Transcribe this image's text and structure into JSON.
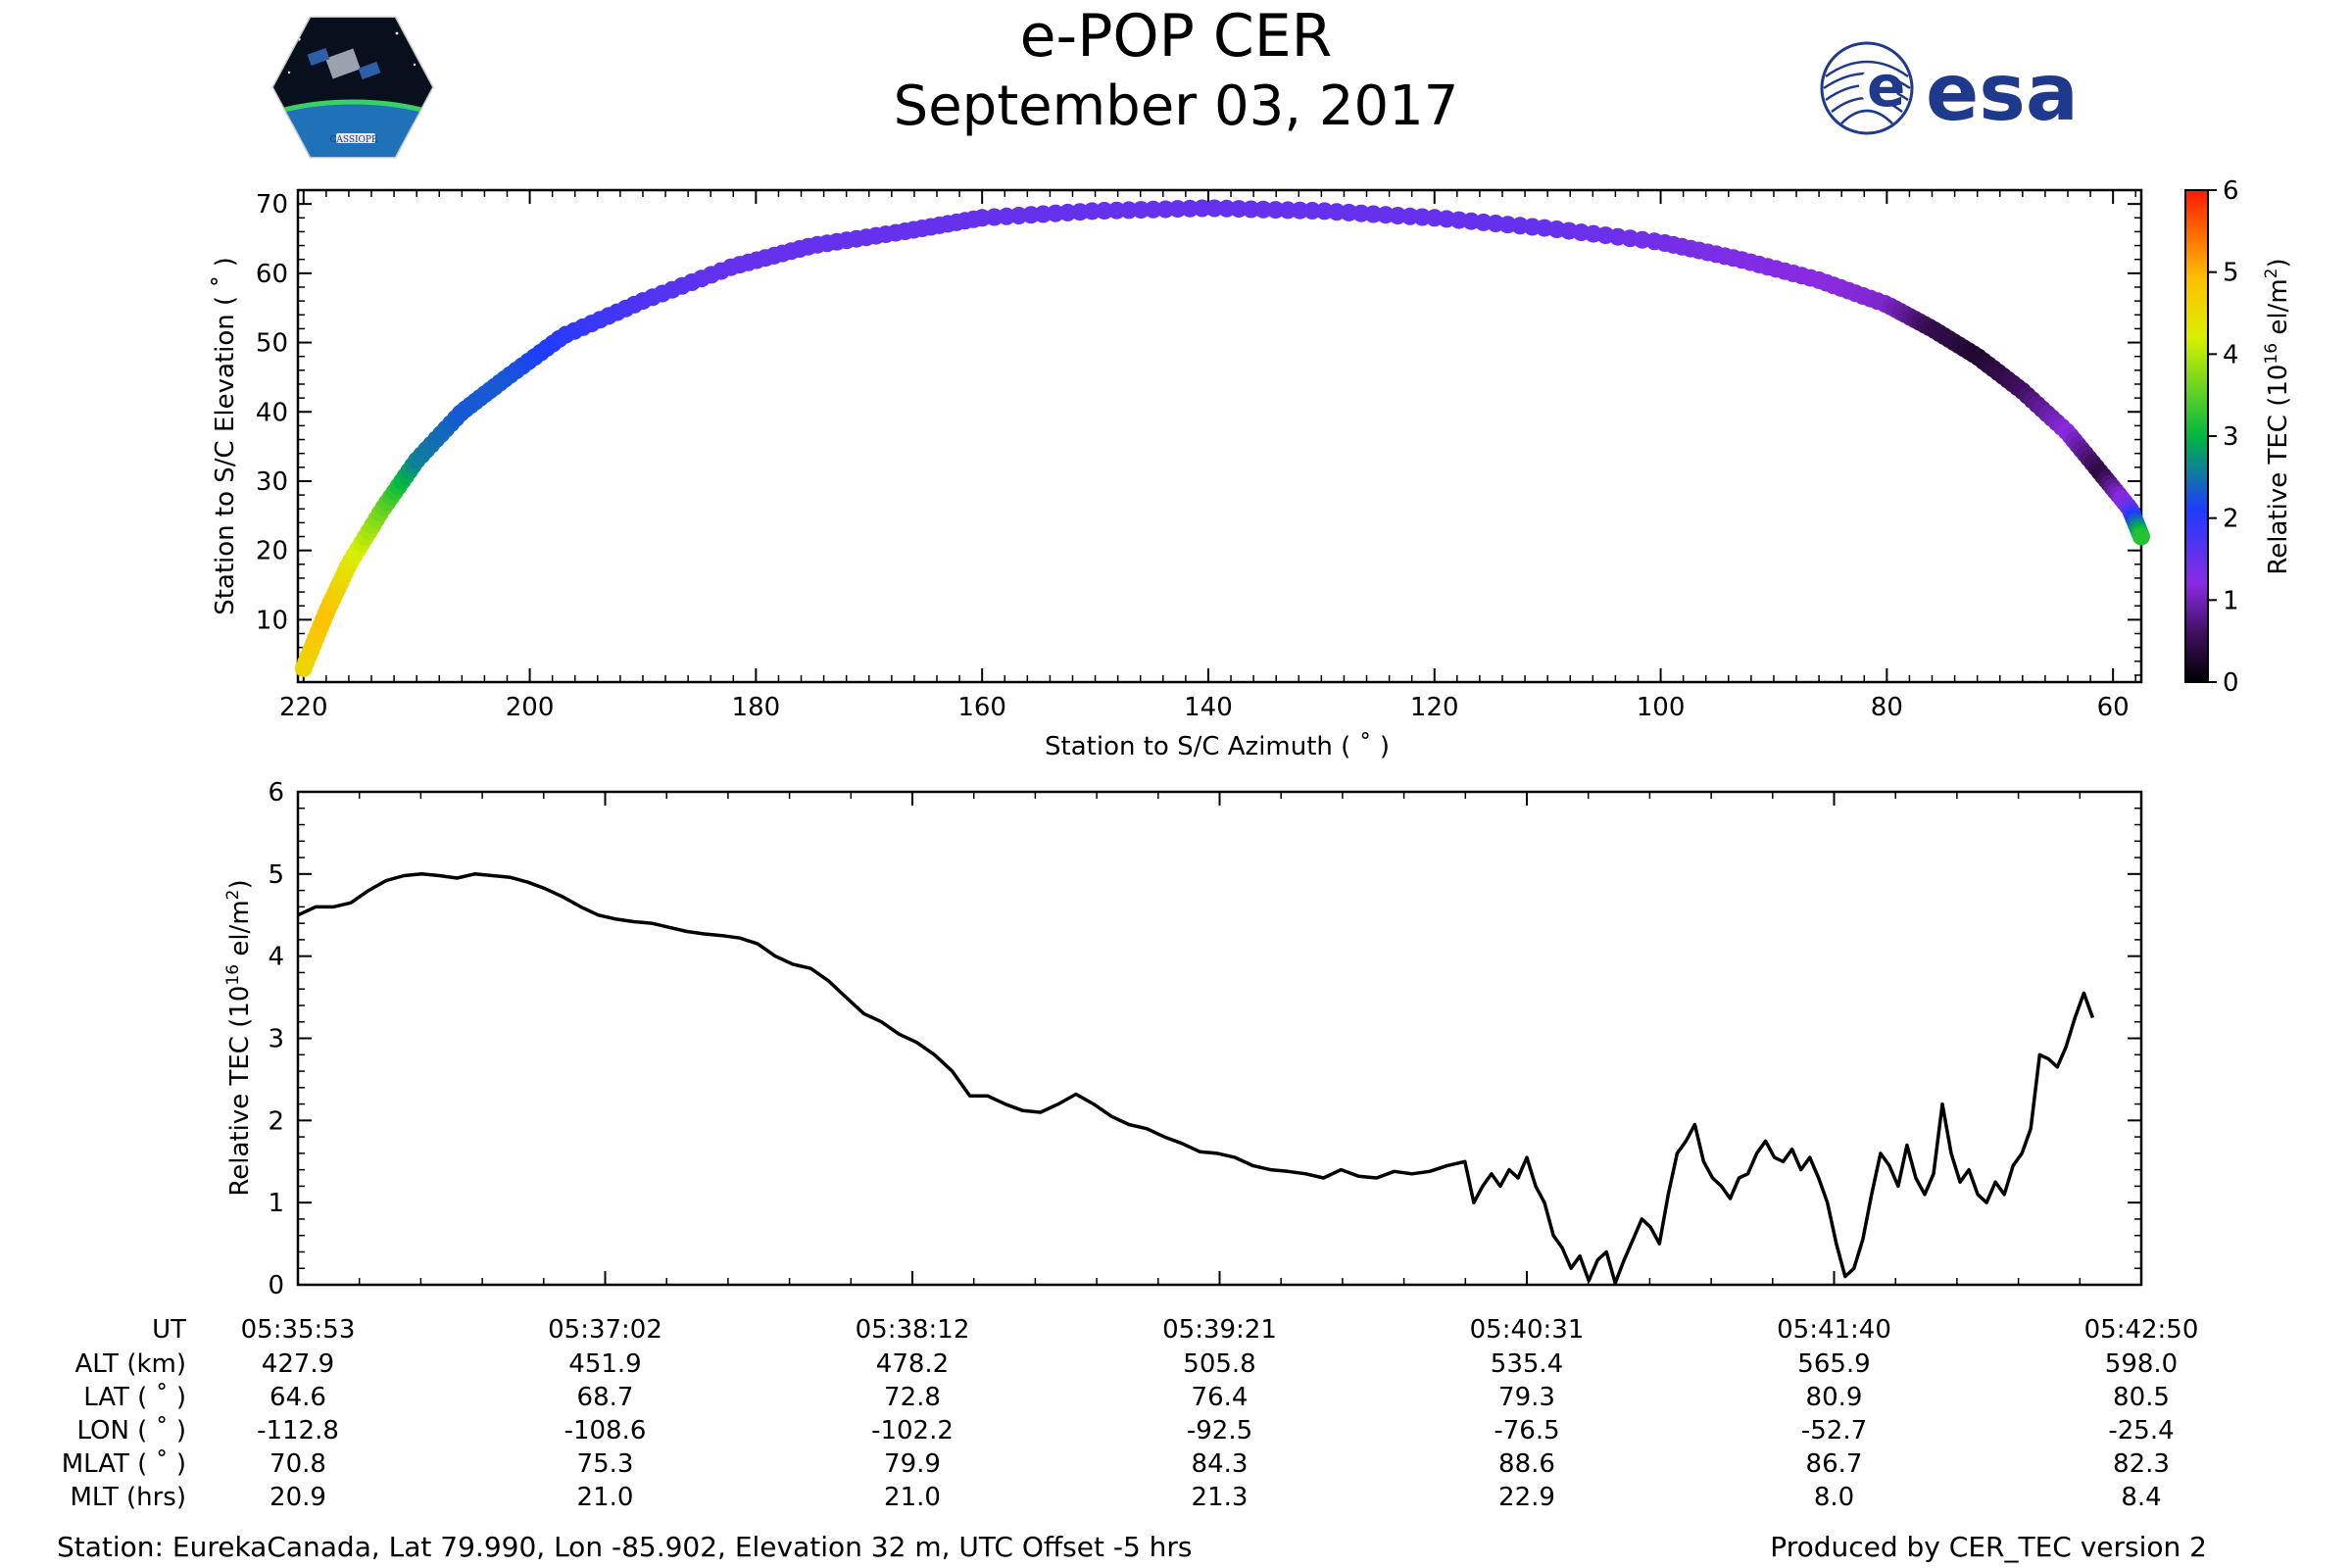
{
  "title": "e-POP CER",
  "subtitle": "September 03, 2017",
  "logos": {
    "left_text": "CASSIOPE",
    "right_text": "esa"
  },
  "colors": {
    "esa_blue": "#1f3a8c",
    "line": "#000000"
  },
  "chart_data": [
    {
      "type": "scatter",
      "xlabel": "Station to S/C Azimuth ( ˚ )",
      "ylabel": "Station to S/C Elevation ( ˚ )",
      "xlim": [
        220.5,
        57.5
      ],
      "ylim": [
        1,
        72
      ],
      "xticks": [
        220,
        200,
        180,
        160,
        140,
        120,
        100,
        80,
        60
      ],
      "yticks": [
        10,
        20,
        30,
        40,
        50,
        60,
        70
      ],
      "color_variable": "Relative TEC",
      "colorbar": {
        "label": "Relative TEC (10^16 el/m^2)",
        "label_base": "Relative TEC (10",
        "label_exp": "16",
        "label_unit": " el/m",
        "label_unit_exp": "2",
        "label_close": ")",
        "range": [
          0,
          6
        ],
        "ticks": [
          0,
          1,
          2,
          3,
          4,
          5,
          6
        ],
        "colormap": "gnuplot-rainbow"
      },
      "track": [
        [
          220,
          3,
          4.6
        ],
        [
          218,
          11,
          4.9
        ],
        [
          216,
          18,
          4.4
        ],
        [
          213,
          26,
          3.6
        ],
        [
          210,
          33,
          2.6
        ],
        [
          206,
          40,
          2.3
        ],
        [
          202,
          45,
          2.3
        ],
        [
          197,
          51,
          2.0
        ],
        [
          190,
          56,
          1.7
        ],
        [
          182,
          61,
          1.5
        ],
        [
          175,
          64,
          1.5
        ],
        [
          167,
          66,
          1.5
        ],
        [
          160,
          68,
          1.5
        ],
        [
          150,
          69,
          1.5
        ],
        [
          140,
          69.4,
          1.5
        ],
        [
          130,
          69,
          1.5
        ],
        [
          120,
          68,
          1.5
        ],
        [
          110,
          66.5,
          1.5
        ],
        [
          100,
          64.5,
          1.4
        ],
        [
          93,
          62,
          1.3
        ],
        [
          86,
          59,
          1.2
        ],
        [
          80,
          55.5,
          1.1
        ],
        [
          76,
          52,
          0.5
        ],
        [
          72,
          48,
          0.3
        ],
        [
          68,
          43,
          0.6
        ],
        [
          64,
          37,
          1.2
        ],
        [
          61,
          31,
          0.4
        ],
        [
          58.5,
          26,
          1.5
        ],
        [
          57.5,
          22,
          3.2
        ]
      ]
    },
    {
      "type": "line",
      "ylabel": "Relative TEC (10^16 el/m^2)",
      "ylabel_base": "Relative TEC (10",
      "ylabel_exp": "16",
      "ylabel_unit": " el/m",
      "ylabel_unit_exp": "2",
      "ylabel_close": ")",
      "ylim": [
        0,
        6
      ],
      "yticks": [
        0,
        1,
        2,
        3,
        4,
        5,
        6
      ],
      "time_seconds_range": [
        0,
        417
      ],
      "series": [
        {
          "name": "Relative TEC",
          "points": [
            [
              0,
              4.5
            ],
            [
              4,
              4.6
            ],
            [
              8,
              4.6
            ],
            [
              12,
              4.65
            ],
            [
              16,
              4.8
            ],
            [
              20,
              4.92
            ],
            [
              24,
              4.98
            ],
            [
              28,
              5.0
            ],
            [
              32,
              4.98
            ],
            [
              36,
              4.95
            ],
            [
              40,
              5.0
            ],
            [
              44,
              4.98
            ],
            [
              48,
              4.96
            ],
            [
              52,
              4.9
            ],
            [
              56,
              4.82
            ],
            [
              60,
              4.72
            ],
            [
              64,
              4.6
            ],
            [
              68,
              4.5
            ],
            [
              72,
              4.45
            ],
            [
              76,
              4.42
            ],
            [
              80,
              4.4
            ],
            [
              84,
              4.35
            ],
            [
              88,
              4.3
            ],
            [
              92,
              4.27
            ],
            [
              96,
              4.25
            ],
            [
              100,
              4.22
            ],
            [
              104,
              4.15
            ],
            [
              108,
              4.0
            ],
            [
              112,
              3.9
            ],
            [
              116,
              3.85
            ],
            [
              120,
              3.7
            ],
            [
              124,
              3.5
            ],
            [
              128,
              3.3
            ],
            [
              132,
              3.2
            ],
            [
              136,
              3.05
            ],
            [
              140,
              2.95
            ],
            [
              144,
              2.8
            ],
            [
              148,
              2.6
            ],
            [
              152,
              2.3
            ],
            [
              156,
              2.3
            ],
            [
              160,
              2.2
            ],
            [
              164,
              2.12
            ],
            [
              168,
              2.1
            ],
            [
              172,
              2.2
            ],
            [
              176,
              2.32
            ],
            [
              180,
              2.2
            ],
            [
              184,
              2.05
            ],
            [
              188,
              1.95
            ],
            [
              192,
              1.9
            ],
            [
              196,
              1.8
            ],
            [
              200,
              1.72
            ],
            [
              204,
              1.62
            ],
            [
              208,
              1.6
            ],
            [
              212,
              1.55
            ],
            [
              216,
              1.45
            ],
            [
              220,
              1.4
            ],
            [
              224,
              1.38
            ],
            [
              228,
              1.35
            ],
            [
              232,
              1.3
            ],
            [
              236,
              1.4
            ],
            [
              240,
              1.32
            ],
            [
              244,
              1.3
            ],
            [
              248,
              1.38
            ],
            [
              252,
              1.35
            ],
            [
              256,
              1.38
            ],
            [
              260,
              1.45
            ],
            [
              264,
              1.5
            ],
            [
              266,
              1.0
            ],
            [
              268,
              1.2
            ],
            [
              270,
              1.35
            ],
            [
              272,
              1.2
            ],
            [
              274,
              1.4
            ],
            [
              276,
              1.3
            ],
            [
              278,
              1.55
            ],
            [
              280,
              1.2
            ],
            [
              282,
              1.0
            ],
            [
              284,
              0.6
            ],
            [
              286,
              0.45
            ],
            [
              288,
              0.2
            ],
            [
              290,
              0.35
            ],
            [
              292,
              0.05
            ],
            [
              294,
              0.3
            ],
            [
              296,
              0.4
            ],
            [
              298,
              0.02
            ],
            [
              300,
              0.3
            ],
            [
              302,
              0.55
            ],
            [
              304,
              0.8
            ],
            [
              306,
              0.7
            ],
            [
              308,
              0.5
            ],
            [
              310,
              1.1
            ],
            [
              312,
              1.6
            ],
            [
              314,
              1.75
            ],
            [
              316,
              1.95
            ],
            [
              318,
              1.5
            ],
            [
              320,
              1.3
            ],
            [
              322,
              1.2
            ],
            [
              324,
              1.05
            ],
            [
              326,
              1.3
            ],
            [
              328,
              1.35
            ],
            [
              330,
              1.6
            ],
            [
              332,
              1.75
            ],
            [
              334,
              1.55
            ],
            [
              336,
              1.5
            ],
            [
              338,
              1.65
            ],
            [
              340,
              1.4
            ],
            [
              342,
              1.55
            ],
            [
              344,
              1.3
            ],
            [
              346,
              1.0
            ],
            [
              348,
              0.5
            ],
            [
              350,
              0.1
            ],
            [
              352,
              0.2
            ],
            [
              354,
              0.55
            ],
            [
              356,
              1.1
            ],
            [
              358,
              1.6
            ],
            [
              360,
              1.45
            ],
            [
              362,
              1.2
            ],
            [
              364,
              1.7
            ],
            [
              366,
              1.3
            ],
            [
              368,
              1.1
            ],
            [
              370,
              1.35
            ],
            [
              372,
              2.2
            ],
            [
              374,
              1.6
            ],
            [
              376,
              1.25
            ],
            [
              378,
              1.4
            ],
            [
              380,
              1.1
            ],
            [
              382,
              1.0
            ],
            [
              384,
              1.25
            ],
            [
              386,
              1.1
            ],
            [
              388,
              1.45
            ],
            [
              390,
              1.6
            ],
            [
              392,
              1.9
            ],
            [
              394,
              2.8
            ],
            [
              396,
              2.75
            ],
            [
              398,
              2.65
            ],
            [
              400,
              2.9
            ],
            [
              402,
              3.25
            ],
            [
              404,
              3.55
            ],
            [
              406,
              3.25
            ]
          ]
        }
      ],
      "xtick_columns": [
        {
          "UT": "05:35:53",
          "ALT": "427.9",
          "LAT": "64.6",
          "LON": "-112.8",
          "MLAT": "70.8",
          "MLT": "20.9"
        },
        {
          "UT": "05:37:02",
          "ALT": "451.9",
          "LAT": "68.7",
          "LON": "-108.6",
          "MLAT": "75.3",
          "MLT": "21.0"
        },
        {
          "UT": "05:38:12",
          "ALT": "478.2",
          "LAT": "72.8",
          "LON": "-102.2",
          "MLAT": "79.9",
          "MLT": "21.0"
        },
        {
          "UT": "05:39:21",
          "ALT": "505.8",
          "LAT": "76.4",
          "LON": "-92.5",
          "MLAT": "84.3",
          "MLT": "21.3"
        },
        {
          "UT": "05:40:31",
          "ALT": "535.4",
          "LAT": "79.3",
          "LON": "-76.5",
          "MLAT": "88.6",
          "MLT": "22.9"
        },
        {
          "UT": "05:41:40",
          "ALT": "565.9",
          "LAT": "80.9",
          "LON": "-52.7",
          "MLAT": "86.7",
          "MLT": "8.0"
        },
        {
          "UT": "05:42:50",
          "ALT": "598.0",
          "LAT": "80.5",
          "LON": "-25.4",
          "MLAT": "82.3",
          "MLT": "8.4"
        }
      ],
      "row_labels": {
        "UT": "UT",
        "ALT": "ALT (km)",
        "LAT": "LAT ( ˚ )",
        "LON": "LON ( ˚ )",
        "MLAT": "MLAT ( ˚ )",
        "MLT": "MLT (hrs)"
      }
    }
  ],
  "footer": {
    "station": "Station: EurekaCanada, Lat 79.990, Lon -85.902, Elevation 32 m, UTC Offset -5 hrs",
    "produced_by": "Produced by CER_TEC version 2"
  }
}
